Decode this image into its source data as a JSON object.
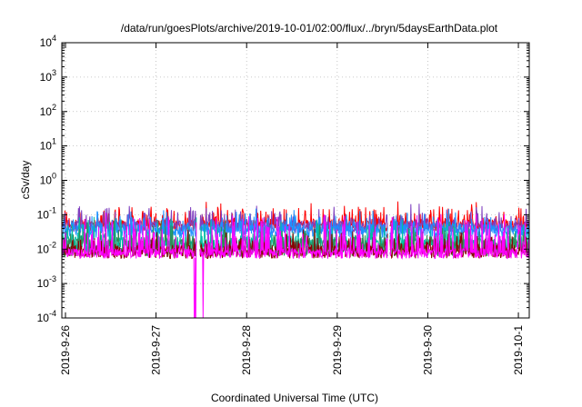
{
  "chart_data": {
    "type": "line",
    "title": "/data/run/goesPlots/archive/2019-10-01/02:00/flux/../bryn/5daysEarthData.plot",
    "xlabel": "Coordinated Universal Time (UTC)",
    "ylabel": "cSv/day",
    "y_scale": "log",
    "ylim": [
      0.0001,
      10000
    ],
    "xlim": [
      "2019-09-25.96",
      "2019-10-01.12"
    ],
    "x_ticks": [
      "2019-9-26",
      "2019-9-27",
      "2019-9-28",
      "2019-9-29",
      "2019-9-30",
      "2019-10-1"
    ],
    "y_ticks": [
      {
        "value": 0.0001,
        "base": "10",
        "exp": "-4"
      },
      {
        "value": 0.001,
        "base": "10",
        "exp": "-3"
      },
      {
        "value": 0.01,
        "base": "10",
        "exp": "-2"
      },
      {
        "value": 0.1,
        "base": "10",
        "exp": "-1"
      },
      {
        "value": 1,
        "base": "10",
        "exp": "0"
      },
      {
        "value": 10,
        "base": "10",
        "exp": "1"
      },
      {
        "value": 100,
        "base": "10",
        "exp": "2"
      },
      {
        "value": 1000,
        "base": "10",
        "exp": "3"
      },
      {
        "value": 10000,
        "base": "10",
        "exp": "4"
      }
    ],
    "grid": true,
    "gaps": [
      [
        "2019-09-27.45",
        "2019-09-27.48"
      ],
      [
        "2019-09-29.56",
        "2019-09-29.58"
      ]
    ],
    "dropouts": [
      {
        "from": "2019-09-27.42",
        "to": "2019-09-27.45",
        "min": 0.0001
      },
      {
        "from": "2019-09-27.49",
        "to": "2019-09-27.52",
        "min": 0.0001
      }
    ],
    "series": [
      {
        "color": "#ff0000",
        "base": 0.05,
        "amp": 0.35,
        "spike": 0.55
      },
      {
        "color": "#7f3fbf",
        "base": 0.045,
        "amp": 0.35,
        "spike": 0.5
      },
      {
        "color": "#1e90ff",
        "base": 0.034,
        "amp": 0.4,
        "spike": 0.45
      },
      {
        "color": "#00bfa5",
        "base": 0.014,
        "amp": 0.5,
        "spike": 0.6
      },
      {
        "color": "#2e8b57",
        "base": 0.011,
        "amp": 0.5,
        "spike": 0.55
      },
      {
        "color": "#8b0000",
        "base": 0.0085,
        "amp": 0.4,
        "spike": 0.5
      },
      {
        "color": "#ff00ff",
        "base": 0.0075,
        "amp": 0.3,
        "spike": 1.05
      }
    ]
  }
}
